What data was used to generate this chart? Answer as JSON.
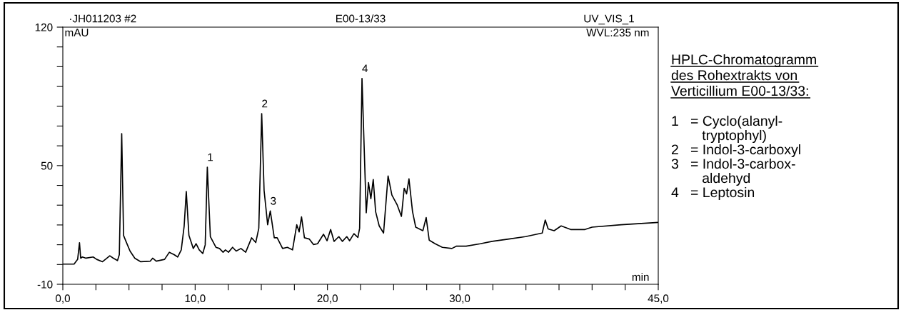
{
  "chart_data": {
    "type": "line",
    "title": "HPLC-Chromatogramm\ndes Rohextrakts von\nVerticillium E00-13/33:",
    "xlabel": "min",
    "ylabel": "mAU",
    "annotations": [
      "·JH011203 #2",
      "E00-13/33",
      "UV_VIS_1",
      "WVL:235 nm",
      {
        "text": "1",
        "x": 10.92,
        "y": 49.2
      },
      {
        "text": "2",
        "x": 15.03,
        "y": 76.3
      },
      {
        "text": "3",
        "x": 15.68,
        "y": 27.1
      },
      {
        "text": "4",
        "x": 22.61,
        "y": 94.1
      },
      "1   = Cyclo(alanyl-\n        tryptophyl)",
      "2   = Indol-3-carboxyl",
      "3   = Indol-3-carbox-\n        aldehyd",
      "4   = Leptosin"
    ],
    "x": [
      0,
      0.85,
      1.12,
      1.26,
      1.35,
      1.48,
      1.75,
      2.29,
      2.56,
      3.0,
      3.55,
      3.82,
      4.13,
      4.27,
      4.45,
      4.59,
      4.81,
      5.08,
      5.44,
      5.89,
      6.61,
      6.79,
      7.06,
      7.69,
      8.05,
      8.41,
      8.68,
      8.95,
      9.17,
      9.33,
      9.53,
      9.86,
      10.07,
      10.31,
      10.58,
      10.76,
      10.92,
      11.15,
      11.57,
      11.84,
      12.11,
      12.29,
      12.52,
      12.83,
      13.1,
      13.46,
      13.82,
      14.27,
      14.58,
      14.81,
      15.03,
      15.21,
      15.48,
      15.68,
      15.98,
      16.2,
      16.61,
      16.97,
      17.36,
      17.68,
      17.86,
      18.04,
      18.26,
      18.62,
      18.94,
      19.25,
      19.7,
      19.97,
      20.24,
      20.5,
      20.86,
      21.13,
      21.46,
      21.67,
      22.0,
      22.3,
      22.43,
      22.61,
      22.93,
      23.1,
      23.28,
      23.46,
      23.64,
      23.91,
      24.24,
      24.58,
      24.87,
      25.27,
      25.59,
      25.8,
      25.98,
      26.16,
      26.43,
      26.67,
      27.21,
      27.46,
      27.69,
      28.14,
      28.68,
      29.4,
      29.76,
      30.48,
      31.55,
      32.45,
      33.71,
      34.97,
      36.23,
      36.46,
      36.68,
      37.13,
      37.66,
      38.38,
      39.46,
      40.0,
      42.2,
      45.0
    ],
    "series": [
      {
        "color": "#000000",
        "values": [
          0.2,
          0.2,
          2.6,
          11,
          3.2,
          3.8,
          3.2,
          3.8,
          2.6,
          1.4,
          4.4,
          3.2,
          2.0,
          5.0,
          66.2,
          14.7,
          11.1,
          6.8,
          3.2,
          1.4,
          1.7,
          3.2,
          1.7,
          2.6,
          6.2,
          5.0,
          3.8,
          7.4,
          19.5,
          36.9,
          14.7,
          8.1,
          10.5,
          7.4,
          5.6,
          9.9,
          49.2,
          14.1,
          8.7,
          8.1,
          6.2,
          7.4,
          6.2,
          8.7,
          6.8,
          8.1,
          6.2,
          13.5,
          11.1,
          18.3,
          76.3,
          37.5,
          20.1,
          27.1,
          13.5,
          13.5,
          8.1,
          8.7,
          7.4,
          20.1,
          16.5,
          24.1,
          13.5,
          12.9,
          10.1,
          10.5,
          15.3,
          12.0,
          17.7,
          11.7,
          14.1,
          11.7,
          14.1,
          12.0,
          15.6,
          13.7,
          18.3,
          94.1,
          26.1,
          41.4,
          33.3,
          43.0,
          26.7,
          19.5,
          15.9,
          44.8,
          35.1,
          30.1,
          24.3,
          38.5,
          35.7,
          43.3,
          26.7,
          18.9,
          17.1,
          23.7,
          12.3,
          10.5,
          8.7,
          8.1,
          9.3,
          9.3,
          10.5,
          11.7,
          12.9,
          14.1,
          15.9,
          22.5,
          18.0,
          17.1,
          19.5,
          17.7,
          17.7,
          18.9,
          20.1,
          21.3
        ]
      }
    ],
    "xlim": [
      0,
      45
    ],
    "ylim": [
      -10,
      120
    ],
    "xticks": [
      {
        "value": 0,
        "label": "0,0"
      },
      {
        "value": 2.5,
        "label": null
      },
      {
        "value": 5,
        "label": null
      },
      {
        "value": 7.5,
        "label": null
      },
      {
        "value": 10,
        "label": "10,0"
      },
      {
        "value": 12.5,
        "label": null
      },
      {
        "value": 15,
        "label": null
      },
      {
        "value": 17.5,
        "label": null
      },
      {
        "value": 20,
        "label": "20,0"
      },
      {
        "value": 22.5,
        "label": null
      },
      {
        "value": 25,
        "label": null
      },
      {
        "value": 27.5,
        "label": null
      },
      {
        "value": 30,
        "label": "30,0"
      },
      {
        "value": 32.5,
        "label": null
      },
      {
        "value": 35,
        "label": null
      },
      {
        "value": 37.5,
        "label": null
      },
      {
        "value": 40,
        "label": null
      },
      {
        "value": 42.5,
        "label": null
      },
      {
        "value": 45,
        "label": "45,0"
      }
    ],
    "yticks": [
      -10,
      {
        "value": 0,
        "label": null
      },
      {
        "value": 10,
        "label": null
      },
      {
        "value": 20,
        "label": null
      },
      {
        "value": 30,
        "label": null
      },
      {
        "value": 40,
        "label": null
      },
      50,
      {
        "value": 60,
        "label": null
      },
      {
        "value": 70,
        "label": null
      },
      {
        "value": 80,
        "label": null
      },
      {
        "value": 90,
        "label": null
      },
      {
        "value": 100,
        "label": null
      },
      {
        "value": 110,
        "label": null
      },
      120
    ],
    "grid": false,
    "legend": false,
    "marker": "none",
    "line_style": "solid"
  }
}
